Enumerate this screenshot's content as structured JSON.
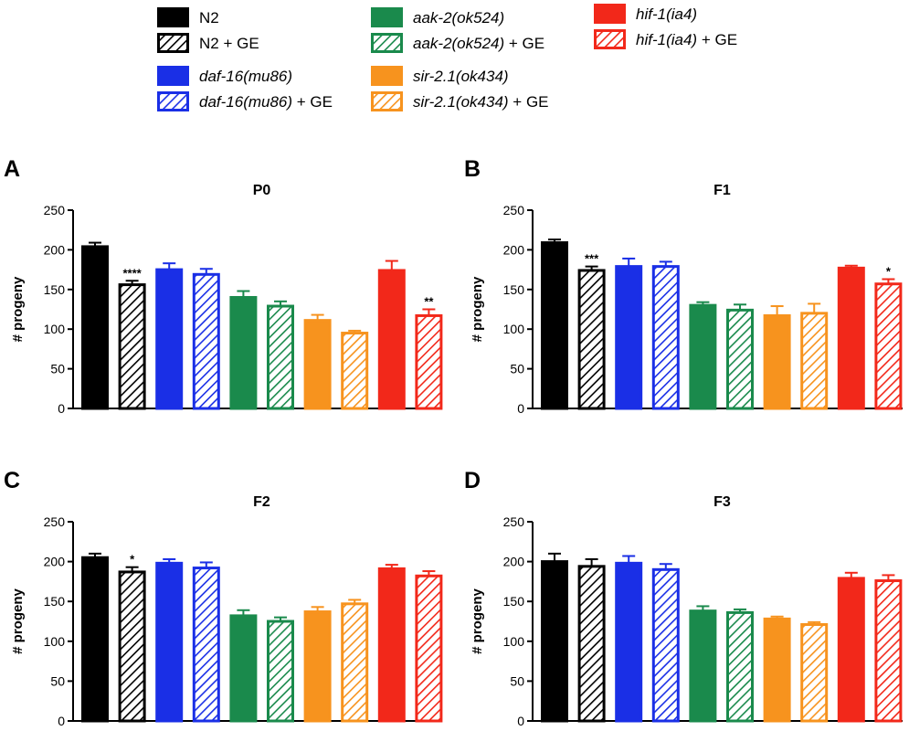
{
  "legend": [
    {
      "id": "n2",
      "base": "N2",
      "suffix": "",
      "italic": false,
      "color": "#000000",
      "hatched": false
    },
    {
      "id": "n2ge",
      "base": "N2",
      "suffix": " + GE",
      "italic": false,
      "color": "#000000",
      "hatched": true
    },
    {
      "id": "daf",
      "base": "daf-16(mu86)",
      "suffix": "",
      "italic": true,
      "color": "#1a2fe6",
      "hatched": false
    },
    {
      "id": "dafge",
      "base": "daf-16(mu86)",
      "suffix": " + GE",
      "italic": true,
      "color": "#1a2fe6",
      "hatched": true
    },
    {
      "id": "aak",
      "base": "aak-2(ok524)",
      "suffix": "",
      "italic": true,
      "color": "#1a8a4c",
      "hatched": false
    },
    {
      "id": "aakge",
      "base": "aak-2(ok524)",
      "suffix": " + GE",
      "italic": true,
      "color": "#1a8a4c",
      "hatched": true
    },
    {
      "id": "sir",
      "base": "sir-2.1(ok434)",
      "suffix": "",
      "italic": true,
      "color": "#f7931e",
      "hatched": false
    },
    {
      "id": "sirge",
      "base": "sir-2.1(ok434)",
      "suffix": " + GE",
      "italic": true,
      "color": "#f7931e",
      "hatched": true
    },
    {
      "id": "hif",
      "base": "hif-1(ia4)",
      "suffix": "",
      "italic": true,
      "color": "#f2281a",
      "hatched": false
    },
    {
      "id": "hifge",
      "base": "hif-1(ia4)",
      "suffix": " + GE",
      "italic": true,
      "color": "#f2281a",
      "hatched": true
    }
  ],
  "chart_data": [
    {
      "type": "bar",
      "panel": "A",
      "title": "P0",
      "ylabel": "# progeny",
      "ylim": [
        0,
        250
      ],
      "yticks": [
        0,
        50,
        100,
        150,
        200,
        250
      ],
      "categories": [
        "N2",
        "N2 + GE",
        "daf-16(mu86)",
        "daf-16(mu86) + GE",
        "aak-2(ok524)",
        "aak-2(ok524) + GE",
        "sir-2.1(ok434)",
        "sir-2.1(ok434) + GE",
        "hif-1(ia4)",
        "hif-1(ia4) + GE"
      ],
      "values": [
        204,
        156,
        175,
        169,
        140,
        129,
        111,
        95,
        174,
        117
      ],
      "errors": [
        5,
        5,
        8,
        7,
        8,
        6,
        7,
        3,
        12,
        8
      ],
      "significance": [
        "",
        "****",
        "",
        "",
        "",
        "",
        "",
        "",
        "",
        "**"
      ]
    },
    {
      "type": "bar",
      "panel": "B",
      "title": "F1",
      "ylabel": "# progeny",
      "ylim": [
        0,
        250
      ],
      "yticks": [
        0,
        50,
        100,
        150,
        200,
        250
      ],
      "categories": [
        "N2",
        "N2 + GE",
        "daf-16(mu86)",
        "daf-16(mu86) + GE",
        "aak-2(ok524)",
        "aak-2(ok524) + GE",
        "sir-2.1(ok434)",
        "sir-2.1(ok434) + GE",
        "hif-1(ia4)",
        "hif-1(ia4) + GE"
      ],
      "values": [
        209,
        174,
        179,
        179,
        130,
        124,
        117,
        120,
        177,
        157
      ],
      "errors": [
        4,
        5,
        10,
        6,
        4,
        7,
        12,
        12,
        3,
        6
      ],
      "significance": [
        "",
        "***",
        "",
        "",
        "",
        "",
        "",
        "",
        "",
        "*"
      ]
    },
    {
      "type": "bar",
      "panel": "C",
      "title": "F2",
      "ylabel": "# progeny",
      "ylim": [
        0,
        250
      ],
      "yticks": [
        0,
        50,
        100,
        150,
        200,
        250
      ],
      "categories": [
        "N2",
        "N2 + GE",
        "daf-16(mu86)",
        "daf-16(mu86) + GE",
        "aak-2(ok524)",
        "aak-2(ok524) + GE",
        "sir-2.1(ok434)",
        "sir-2.1(ok434) + GE",
        "hif-1(ia4)",
        "hif-1(ia4) + GE"
      ],
      "values": [
        205,
        187,
        198,
        192,
        132,
        125,
        137,
        147,
        191,
        182
      ],
      "errors": [
        5,
        6,
        5,
        7,
        7,
        5,
        6,
        5,
        5,
        6
      ],
      "significance": [
        "",
        "*",
        "",
        "",
        "",
        "",
        "",
        "",
        "",
        ""
      ]
    },
    {
      "type": "bar",
      "panel": "D",
      "title": "F3",
      "ylabel": "# progeny",
      "ylim": [
        0,
        250
      ],
      "yticks": [
        0,
        50,
        100,
        150,
        200,
        250
      ],
      "categories": [
        "N2",
        "N2 + GE",
        "daf-16(mu86)",
        "daf-16(mu86) + GE",
        "aak-2(ok524)",
        "aak-2(ok524) + GE",
        "sir-2.1(ok434)",
        "sir-2.1(ok434) + GE",
        "hif-1(ia4)",
        "hif-1(ia4) + GE"
      ],
      "values": [
        200,
        194,
        198,
        190,
        138,
        136,
        128,
        121,
        179,
        176
      ],
      "errors": [
        10,
        9,
        9,
        7,
        6,
        4,
        3,
        3,
        7,
        7
      ],
      "significance": [
        "",
        "",
        "",
        "",
        "",
        "",
        "",
        "",
        "",
        ""
      ]
    }
  ]
}
